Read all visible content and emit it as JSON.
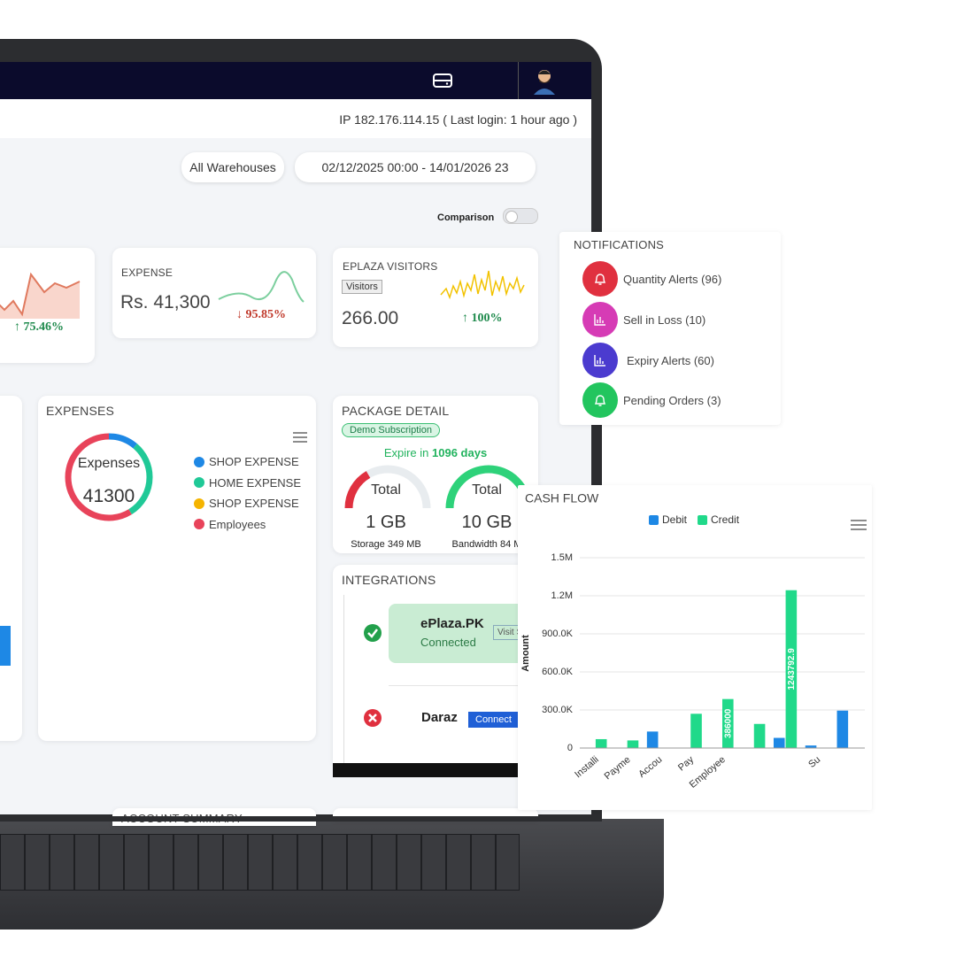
{
  "header": {
    "ip_text": "IP 182.176.114.15 ( Last login: 1 hour ago )"
  },
  "filters": {
    "warehouse": "All Warehouses",
    "date_range": "02/12/2025 00:00 - 14/01/2026 23",
    "comparison": "Comparison"
  },
  "cards": [
    {
      "change": "↑ 75.46%"
    },
    {
      "title": "EXPENSE",
      "value": "Rs. 41,300",
      "change": "↓ 95.85%"
    },
    {
      "title": "EPLAZA VISITORS",
      "badge": "Visitors",
      "value": "266.00",
      "change": "↑ 100%"
    }
  ],
  "expenses": {
    "title": "EXPENSES",
    "center_label": "Expenses",
    "center_value": "41300",
    "legend": [
      {
        "name": "SHOP EXPENSE",
        "color": "#1e88e5",
        "value": 4600
      },
      {
        "name": "HOME EXPENSE",
        "color": "#20c997",
        "value": 12400
      },
      {
        "name": "SHOP EXPENSE",
        "color": "#f5b400",
        "value": 0
      },
      {
        "name": "Employees",
        "color": "#e8435a",
        "value": 24300
      }
    ]
  },
  "package": {
    "title": "PACKAGE DETAIL",
    "badge": "Demo Subscription",
    "expire_prefix": "Expire in",
    "expire_days": "1096 days",
    "gauges": [
      {
        "label": "Total",
        "value": "1 GB",
        "caption": "Storage 349 MB"
      },
      {
        "label": "Total",
        "value": "10 GB",
        "caption": "Bandwidth 84 M"
      }
    ]
  },
  "integrations": {
    "title": "INTEGRATIONS",
    "items": [
      {
        "name": "ePlaza.PK",
        "status": "Connected",
        "action": "Visit S"
      },
      {
        "name": "Daraz",
        "action": "Connect"
      }
    ]
  },
  "account_summary": {
    "title": "ACCOUNT SUMMARY"
  },
  "notifications": {
    "title": "NOTIFICATIONS",
    "items": [
      "Quantity Alerts (96)",
      "Sell in Loss (10)",
      "Expiry Alerts (60)",
      "Pending Orders (3)"
    ]
  },
  "cash_flow": {
    "type": "bar",
    "title": "CASH FLOW",
    "y_label": "Amount",
    "categories": [
      "Installi",
      "Payme",
      "Accou",
      "Pay",
      "Employee",
      null,
      null,
      "Su",
      null
    ],
    "series": [
      {
        "name": "Debit",
        "color": "#1e88e5",
        "values": [
          0,
          0,
          130000,
          0,
          0,
          0,
          80000,
          20000,
          294878
        ]
      },
      {
        "name": "Credit",
        "color": "#20d98a",
        "values": [
          70000,
          60000,
          0,
          270000,
          386000,
          190000,
          1243792.9,
          0,
          0
        ]
      }
    ],
    "ylim": [
      0,
      1500000
    ],
    "yticks": [
      0,
      {
        "value": 300000,
        "label": "300.0K"
      },
      {
        "value": 600000,
        "label": "600.0K"
      },
      {
        "value": 900000,
        "label": "900.0K"
      },
      {
        "value": 1200000,
        "label": "1.2M"
      },
      {
        "value": 1500000,
        "label": "1.5M"
      }
    ],
    "grid": true
  }
}
